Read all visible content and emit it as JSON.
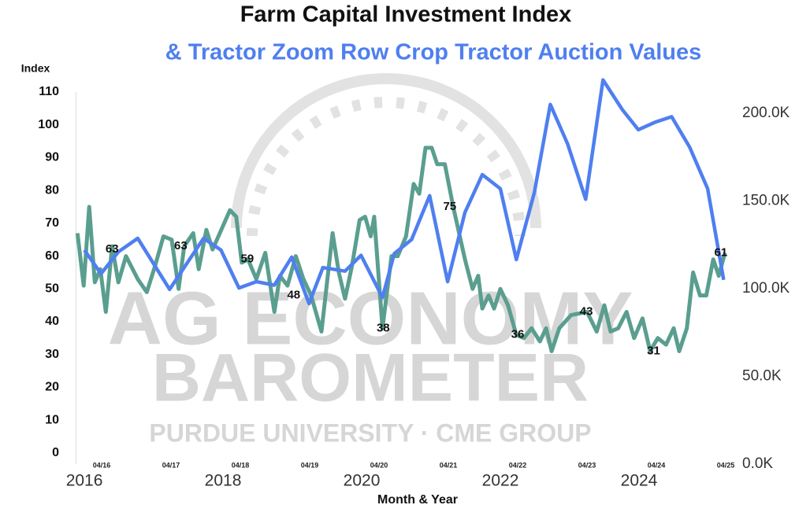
{
  "chart_data": {
    "type": "line",
    "title": "Farm Capital Investment Index",
    "subtitle": "& Tractor Zoom Row Crop Tractor Auction Values",
    "y_label": "Index",
    "x_label": "Month & Year",
    "watermark": [
      "AG ECONOMY",
      "BAROMETER",
      "PURDUE UNIVERSITY · CME GROUP"
    ],
    "xlim": [
      2015.88,
      2025.35
    ],
    "xticks": [
      2016,
      2018,
      2020,
      2022,
      2024
    ],
    "xticks2": [
      {
        "value": 2016.25,
        "label": "04/16"
      },
      {
        "value": 2017.25,
        "label": "04/17"
      },
      {
        "value": 2018.25,
        "label": "04/18"
      },
      {
        "value": 2019.25,
        "label": "04/19"
      },
      {
        "value": 2020.25,
        "label": "04/20"
      },
      {
        "value": 2021.25,
        "label": "04/21"
      },
      {
        "value": 2022.25,
        "label": "04/22"
      },
      {
        "value": 2023.25,
        "label": "04/23"
      },
      {
        "value": 2024.25,
        "label": "04/24"
      },
      {
        "value": 2025.25,
        "label": "04/25"
      }
    ],
    "ylim": [
      -3.4,
      110
    ],
    "yticks": [
      0,
      10,
      20,
      30,
      40,
      50,
      60,
      70,
      80,
      90,
      100,
      110
    ],
    "y2lim": [
      0,
      212100
    ],
    "y2ticks": [
      {
        "value": 0,
        "label": "0.0K"
      },
      {
        "value": 50000,
        "label": "50.0K"
      },
      {
        "value": 100000,
        "label": "100.0K"
      },
      {
        "value": 150000,
        "label": "150.0K"
      },
      {
        "value": 200000,
        "label": "200.0K"
      }
    ],
    "series": [
      {
        "color": "#5a9e8f",
        "axis": "y",
        "x": [
          2015.9,
          2015.99,
          2016.07,
          2016.15,
          2016.23,
          2016.31,
          2016.4,
          2016.49,
          2016.6,
          2016.77,
          2016.9,
          2017.02,
          2017.14,
          2017.26,
          2017.36,
          2017.44,
          2017.57,
          2017.65,
          2017.76,
          2017.85,
          2018.1,
          2018.19,
          2018.27,
          2018.36,
          2018.48,
          2018.61,
          2018.74,
          2018.82,
          2018.93,
          2019.05,
          2019.16,
          2019.27,
          2019.42,
          2019.58,
          2019.67,
          2019.76,
          2019.86,
          2019.97,
          2020.05,
          2020.13,
          2020.18,
          2020.3,
          2020.43,
          2020.52,
          2020.64,
          2020.75,
          2020.83,
          2020.92,
          2021.01,
          2021.09,
          2021.2,
          2021.32,
          2021.49,
          2021.6,
          2021.68,
          2021.74,
          2021.83,
          2021.91,
          2022.0,
          2022.11,
          2022.23,
          2022.34,
          2022.45,
          2022.57,
          2022.66,
          2022.74,
          2022.85,
          2023.02,
          2023.25,
          2023.39,
          2023.5,
          2023.59,
          2023.7,
          2023.82,
          2023.93,
          2024.05,
          2024.16,
          2024.27,
          2024.39,
          2024.5,
          2024.58,
          2024.69,
          2024.78,
          2024.88,
          2024.97,
          2025.07,
          2025.15,
          2025.24
        ],
        "values": [
          67,
          51,
          75,
          52,
          56,
          43,
          63,
          52,
          60,
          53,
          49,
          57,
          66,
          65,
          50,
          63,
          67,
          56,
          68,
          62,
          74,
          72,
          58,
          59,
          53,
          61,
          43,
          54,
          51,
          60,
          53,
          48,
          37,
          67,
          55,
          47,
          57,
          71,
          72,
          66,
          72,
          38,
          60,
          60,
          66,
          82,
          79,
          93,
          93,
          88,
          88,
          75,
          59,
          50,
          54,
          44,
          48,
          44,
          50,
          45,
          36,
          35,
          38,
          34,
          38,
          31,
          38,
          42,
          43,
          37,
          45,
          37,
          38,
          43,
          35,
          41,
          31,
          35,
          33,
          38,
          31,
          38,
          55,
          48,
          48,
          59,
          54,
          61
        ]
      },
      {
        "color": "#4f7ff0",
        "axis": "y2",
        "x": [
          2016.0,
          2016.24,
          2016.49,
          2016.77,
          2017.23,
          2017.72,
          2017.97,
          2018.23,
          2018.48,
          2018.74,
          2018.99,
          2019.24,
          2019.44,
          2019.76,
          2019.99,
          2020.3,
          2020.47,
          2020.72,
          2020.98,
          2021.24,
          2021.49,
          2021.74,
          2022.0,
          2022.23,
          2022.49,
          2022.72,
          2022.97,
          2023.23,
          2023.48,
          2023.76,
          2023.99,
          2024.24,
          2024.47,
          2024.73,
          2024.99,
          2025.22
        ],
        "values": [
          122000,
          108500,
          121000,
          128700,
          99600,
          128700,
          122000,
          100400,
          104000,
          102000,
          118000,
          91500,
          112000,
          110000,
          119000,
          95000,
          120000,
          128000,
          153000,
          104000,
          143500,
          165000,
          157000,
          116600,
          154700,
          205000,
          182500,
          151000,
          219000,
          202000,
          190600,
          195000,
          198000,
          180700,
          157000,
          105000
        ]
      }
    ],
    "annotations": [
      {
        "text": "63",
        "x": 2016.4,
        "y": 62
      },
      {
        "text": "63",
        "x": 2017.39,
        "y": 63
      },
      {
        "text": "59",
        "x": 2018.35,
        "y": 59
      },
      {
        "text": "48",
        "x": 2019.02,
        "y": 48
      },
      {
        "text": "38",
        "x": 2020.31,
        "y": 38
      },
      {
        "text": "75",
        "x": 2021.27,
        "y": 75
      },
      {
        "text": "36",
        "x": 2022.25,
        "y": 36
      },
      {
        "text": "43",
        "x": 2023.24,
        "y": 43
      },
      {
        "text": "31",
        "x": 2024.21,
        "y": 31
      },
      {
        "text": "61",
        "x": 2025.18,
        "y": 61
      }
    ]
  }
}
